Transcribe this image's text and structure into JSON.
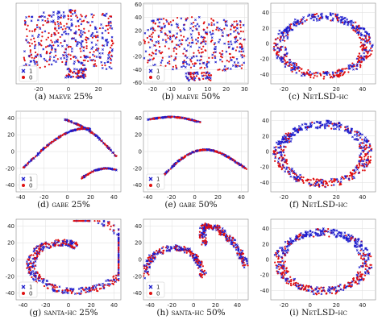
{
  "figure": {
    "series_colors": {
      "1": "#1a1acc",
      "0": "#e01010"
    },
    "legend_marker_1": "x",
    "legend_marker_0": "o"
  },
  "chart_data": [
    {
      "id": "a",
      "type": "scatter",
      "caption_prefix": "(a)",
      "caption_method": "maeve",
      "caption_suffix": "25%",
      "shape": "blob",
      "xticks": [
        -20,
        0,
        20
      ],
      "yticks": [],
      "xlim": [
        -35,
        35
      ],
      "ylim": [
        -65,
        50
      ],
      "legend": {
        "show": true,
        "position": "lower-left",
        "labels": [
          "1",
          "0"
        ]
      },
      "series": [
        {
          "name": "1",
          "color": "#1a1acc"
        },
        {
          "name": "0",
          "color": "#e01010"
        }
      ]
    },
    {
      "id": "b",
      "type": "scatter",
      "caption_prefix": "(b)",
      "caption_method": "maeve",
      "caption_suffix": "50%",
      "shape": "blob",
      "xticks": [
        -20,
        -10,
        0,
        10,
        20,
        30
      ],
      "yticks": [
        60,
        40,
        20,
        0,
        -20,
        -40,
        -60
      ],
      "xlim": [
        -25,
        32
      ],
      "ylim": [
        -62,
        62
      ],
      "legend": {
        "show": true,
        "position": "lower-left",
        "labels": [
          "1",
          "0"
        ]
      },
      "series": [
        {
          "name": "1",
          "color": "#1a1acc"
        },
        {
          "name": "0",
          "color": "#e01010"
        }
      ]
    },
    {
      "id": "c",
      "type": "scatter",
      "caption_prefix": "(c)",
      "caption_method": "NetLSD-hc",
      "caption_suffix": "",
      "shape": "ring",
      "xticks": [
        -20,
        0,
        20,
        40
      ],
      "yticks": [
        40,
        20,
        0,
        -20,
        -40
      ],
      "xlim": [
        -30,
        50
      ],
      "ylim": [
        -52,
        52
      ],
      "legend": {
        "show": false,
        "position": "",
        "labels": []
      },
      "series": [
        {
          "name": "1",
          "color": "#1a1acc"
        },
        {
          "name": "0",
          "color": "#e01010"
        }
      ]
    },
    {
      "id": "d",
      "type": "scatter",
      "caption_prefix": "(d)",
      "caption_method": "gabe",
      "caption_suffix": "25%",
      "shape": "curves1",
      "xticks": [
        -40,
        -20,
        0,
        20,
        40
      ],
      "yticks": [
        40,
        20,
        0,
        -20,
        -40
      ],
      "xlim": [
        -44,
        46
      ],
      "ylim": [
        -48,
        48
      ],
      "legend": {
        "show": true,
        "position": "lower-left",
        "labels": [
          "1",
          "0"
        ]
      },
      "series": [
        {
          "name": "1",
          "color": "#1a1acc"
        },
        {
          "name": "0",
          "color": "#e01010"
        }
      ]
    },
    {
      "id": "e",
      "type": "scatter",
      "caption_prefix": "(e)",
      "caption_method": "gabe",
      "caption_suffix": "50%",
      "shape": "curves2",
      "xticks": [
        -40,
        -20,
        0,
        20,
        40
      ],
      "yticks": [
        40,
        20,
        0,
        -20,
        -40
      ],
      "xlim": [
        -44,
        46
      ],
      "ylim": [
        -48,
        48
      ],
      "legend": {
        "show": true,
        "position": "lower-left",
        "labels": [
          "1",
          "0"
        ]
      },
      "series": [
        {
          "name": "1",
          "color": "#1a1acc"
        },
        {
          "name": "0",
          "color": "#e01010"
        }
      ]
    },
    {
      "id": "f",
      "type": "scatter",
      "caption_prefix": "(f)",
      "caption_method": "NetLSD-hc",
      "caption_suffix": "",
      "shape": "ring",
      "xticks": [
        -20,
        0,
        20,
        40
      ],
      "yticks": [
        40,
        20,
        0,
        -20,
        -40
      ],
      "xlim": [
        -30,
        50
      ],
      "ylim": [
        -52,
        52
      ],
      "legend": {
        "show": false,
        "position": "",
        "labels": []
      },
      "series": [
        {
          "name": "1",
          "color": "#1a1acc"
        },
        {
          "name": "0",
          "color": "#e01010"
        }
      ]
    },
    {
      "id": "g",
      "type": "scatter",
      "caption_prefix": "(g)",
      "caption_method": "santa-hc",
      "caption_suffix": "25%",
      "shape": "spiral",
      "xticks": [
        -40,
        -20,
        0,
        20,
        40
      ],
      "yticks": [
        40,
        20,
        0,
        -20,
        -40
      ],
      "xlim": [
        -46,
        46
      ],
      "ylim": [
        -48,
        48
      ],
      "legend": {
        "show": true,
        "position": "lower-left",
        "labels": [
          "1",
          "0"
        ]
      },
      "series": [
        {
          "name": "1",
          "color": "#1a1acc"
        },
        {
          "name": "0",
          "color": "#e01010"
        }
      ]
    },
    {
      "id": "h",
      "type": "scatter",
      "caption_prefix": "(h)",
      "caption_method": "santa-hc",
      "caption_suffix": "50%",
      "shape": "arcs",
      "xticks": [
        -40,
        -20,
        0,
        20,
        40
      ],
      "yticks": [
        40,
        20,
        0,
        -20,
        -40
      ],
      "xlim": [
        -46,
        50
      ],
      "ylim": [
        -48,
        48
      ],
      "legend": {
        "show": true,
        "position": "lower-left",
        "labels": [
          "1",
          "0"
        ]
      },
      "series": [
        {
          "name": "1",
          "color": "#1a1acc"
        },
        {
          "name": "0",
          "color": "#e01010"
        }
      ]
    },
    {
      "id": "i",
      "type": "scatter",
      "caption_prefix": "(i)",
      "caption_method": "NetLSD-hc",
      "caption_suffix": "",
      "shape": "ring",
      "xticks": [
        -20,
        0,
        20,
        40
      ],
      "yticks": [
        40,
        20,
        0,
        -20,
        -40
      ],
      "xlim": [
        -30,
        50
      ],
      "ylim": [
        -52,
        52
      ],
      "legend": {
        "show": false,
        "position": "",
        "labels": []
      },
      "series": [
        {
          "name": "1",
          "color": "#1a1acc"
        },
        {
          "name": "0",
          "color": "#e01010"
        }
      ]
    }
  ]
}
